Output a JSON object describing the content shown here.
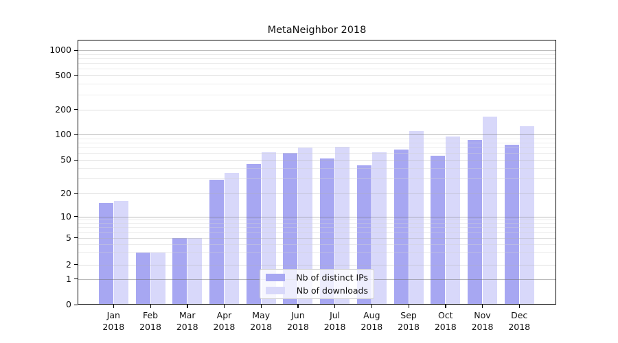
{
  "chart_data": {
    "type": "bar",
    "title": "MetaNeighbor 2018",
    "categories": [
      "Jan",
      "Feb",
      "Mar",
      "Apr",
      "May",
      "Jun",
      "Jul",
      "Aug",
      "Sep",
      "Oct",
      "Nov",
      "Dec"
    ],
    "year": "2018",
    "series": [
      {
        "name": "Nb of distinct IPs",
        "color": "#a7a7f2",
        "values": [
          15,
          3,
          5,
          29,
          45,
          60,
          52,
          43,
          66,
          56,
          86,
          76
        ]
      },
      {
        "name": "Nb of downloads",
        "color": "#d8d8fa",
        "values": [
          16,
          3,
          5,
          35,
          62,
          70,
          72,
          62,
          110,
          94,
          163,
          125
        ]
      }
    ],
    "xlabel": "",
    "ylabel": "",
    "yscale": "symlog",
    "y_ticks": [
      0,
      1,
      2,
      5,
      10,
      20,
      50,
      100,
      200,
      500,
      1000
    ],
    "ylim": [
      0,
      1400
    ],
    "grid": "on",
    "legend_position": "lower center",
    "y_anchors": [
      [
        0,
        444
      ],
      [
        1,
        406.7
      ],
      [
        2,
        385.5
      ],
      [
        5,
        346.5
      ],
      [
        10,
        315.5
      ],
      [
        20,
        282
      ],
      [
        50,
        233
      ],
      [
        100,
        196
      ],
      [
        200,
        159.5
      ],
      [
        500,
        110
      ],
      [
        1000,
        73
      ]
    ],
    "grid_major_color": "#b7b7b7",
    "grid_mid_color": "#e2e2e2",
    "grid_minor_color": "#ededed"
  }
}
